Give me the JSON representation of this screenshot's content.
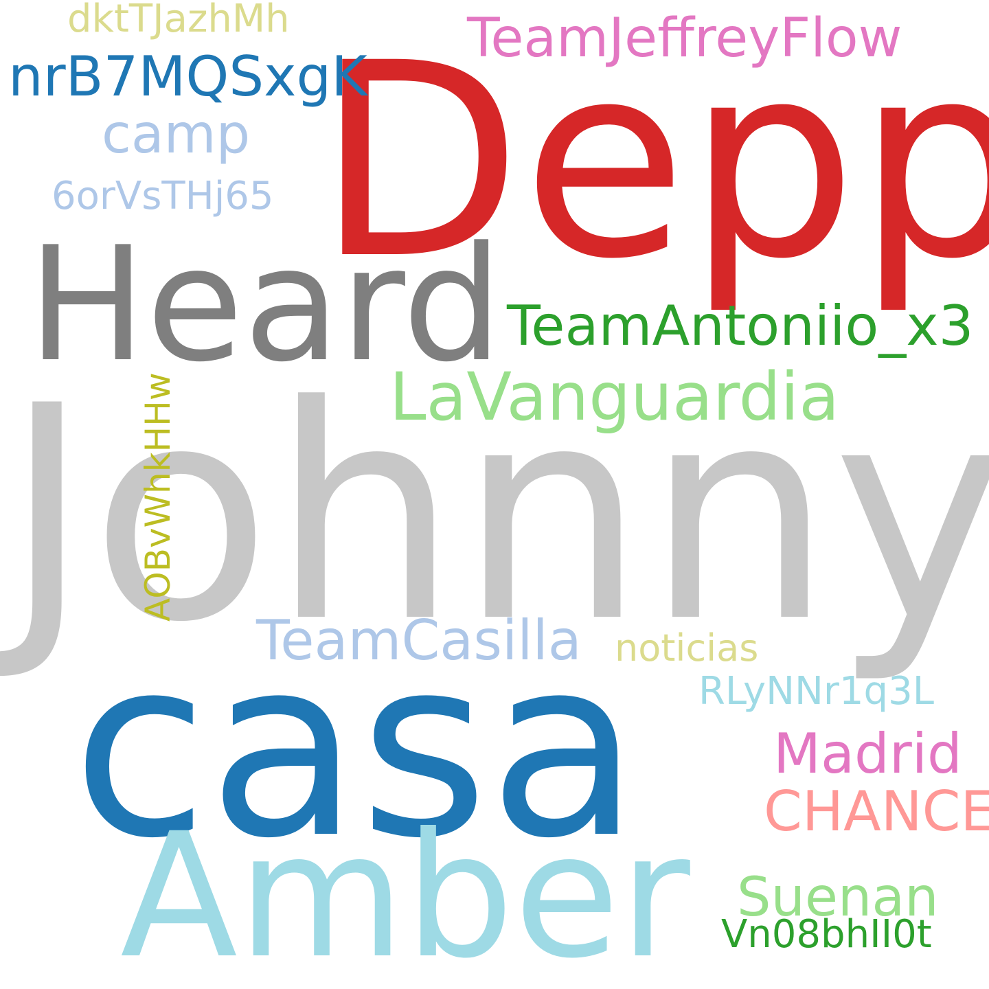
{
  "words": {
    "johnny": {
      "text": "Johnny",
      "color": "#c7c7c7"
    },
    "depp": {
      "text": "Depp",
      "color": "#d62728"
    },
    "casa": {
      "text": "casa",
      "color": "#1f77b4"
    },
    "heard": {
      "text": "Heard",
      "color": "#7f7f7f"
    },
    "amber": {
      "text": "Amber",
      "color": "#9edae5"
    },
    "lavang": {
      "text": "LaVanguardia",
      "color": "#98df8a"
    },
    "teamjeff": {
      "text": "TeamJeffreyFlow",
      "color": "#e377c2"
    },
    "teamanto": {
      "text": "TeamAntoniio_x3",
      "color": "#2ca02c"
    },
    "teamcas": {
      "text": "TeamCasilla",
      "color": "#aec7e8"
    },
    "nrb": {
      "text": "nrB7MQSxgK",
      "color": "#1f77b4"
    },
    "camp": {
      "text": "camp",
      "color": "#aec7e8"
    },
    "madrid": {
      "text": "Madrid",
      "color": "#e377c2"
    },
    "chance": {
      "text": "CHANCE",
      "color": "#ff9896"
    },
    "suenan": {
      "text": "Suenan",
      "color": "#98df8a"
    },
    "dkt": {
      "text": "dktTJazhMh",
      "color": "#dbdb8d"
    },
    "sixor": {
      "text": "6orVsTHj65",
      "color": "#aec7e8"
    },
    "noticias": {
      "text": "noticias",
      "color": "#dbdb8d"
    },
    "rly": {
      "text": "RLyNNr1q3L",
      "color": "#9edae5"
    },
    "vn0": {
      "text": "Vn08bhII0t",
      "color": "#2ca02c"
    },
    "aob": {
      "text": "AOBvWhkHHw",
      "color": "#bcbd22"
    }
  }
}
